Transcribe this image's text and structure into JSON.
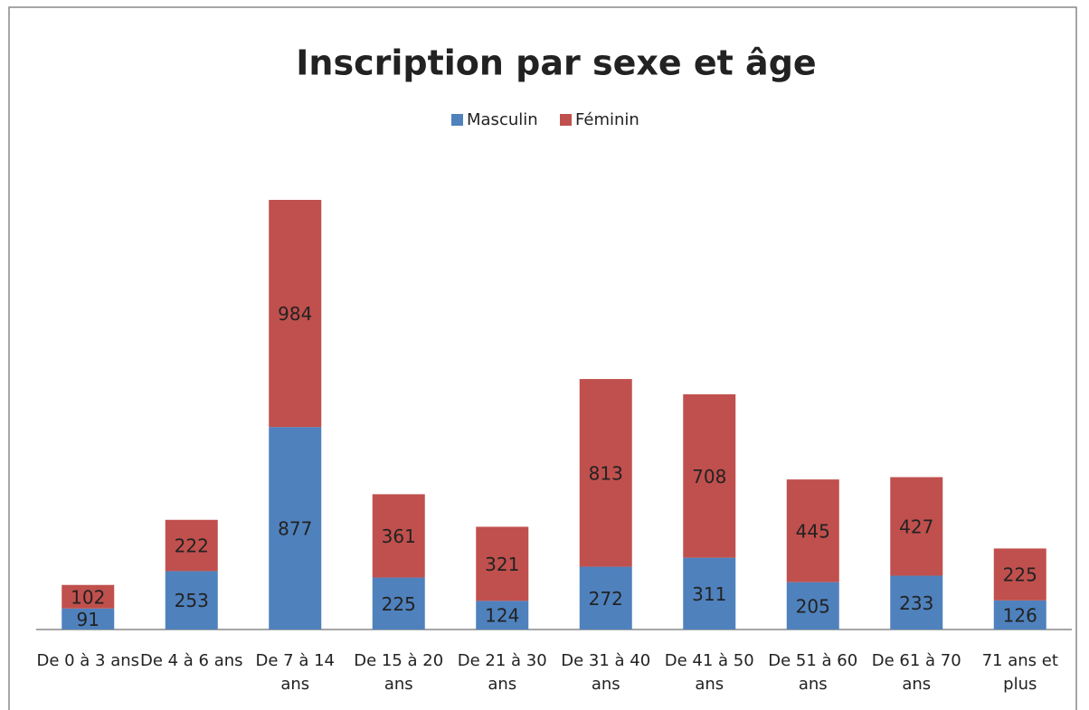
{
  "chart_data": {
    "type": "stacked_bar",
    "title": "Inscription par sexe et âge",
    "categories": [
      "De 0 à 3 ans",
      "De 4 à 6 ans",
      "De 7 à 14 ans",
      "De 15 à 20 ans",
      "De 21 à 30 ans",
      "De 31 à 40 ans",
      "De 41 à 50 ans",
      "De 51 à 60 ans",
      "De 61 à 70 ans",
      "71 ans et plus"
    ],
    "series": [
      {
        "name": "Masculin",
        "color": "#4f81bd",
        "values": [
          91,
          253,
          877,
          225,
          124,
          272,
          311,
          205,
          233,
          126
        ]
      },
      {
        "name": "Féminin",
        "color": "#c0504d",
        "values": [
          102,
          222,
          984,
          361,
          321,
          813,
          708,
          445,
          427,
          225
        ]
      }
    ],
    "legend": "top"
  }
}
